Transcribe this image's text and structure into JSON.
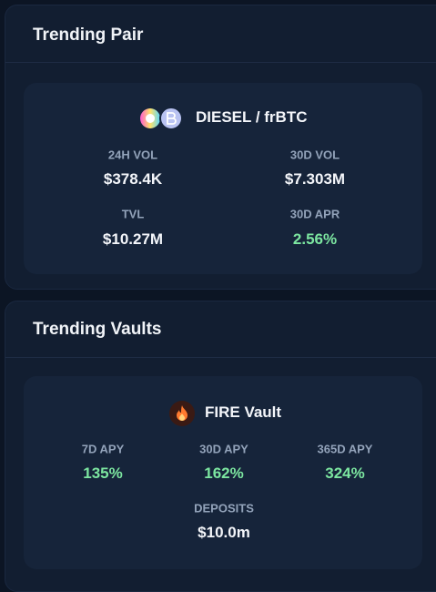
{
  "trending_pair": {
    "title": "Trending Pair",
    "pair": "DIESEL / frBTC",
    "stats": [
      {
        "label": "24H VOL",
        "value": "$378.4K"
      },
      {
        "label": "30D VOL",
        "value": "$7.303M"
      },
      {
        "label": "TVL",
        "value": "$10.27M"
      },
      {
        "label": "30D APR",
        "value": "2.56%"
      }
    ]
  },
  "trending_vaults": {
    "title": "Trending Vaults",
    "vault": "FIRE Vault",
    "stats": [
      {
        "label": "7D APY",
        "value": "135%"
      },
      {
        "label": "30D APY",
        "value": "162%"
      },
      {
        "label": "365D APY",
        "value": "324%"
      },
      {
        "label": "DEPOSITS",
        "value": "$10.0m"
      }
    ]
  }
}
